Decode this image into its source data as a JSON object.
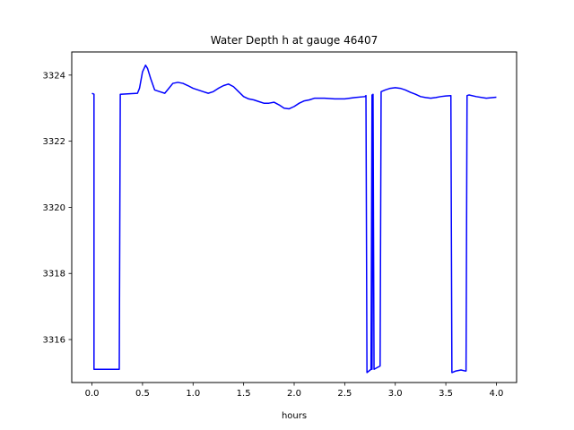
{
  "chart_data": {
    "type": "line",
    "title": "Water Depth h at gauge 46407",
    "xlabel": "hours",
    "ylabel": "",
    "xlim": [
      -0.2,
      4.2
    ],
    "ylim": [
      3314.7,
      3324.7
    ],
    "xticks": [
      0.0,
      0.5,
      1.0,
      1.5,
      2.0,
      2.5,
      3.0,
      3.5,
      4.0
    ],
    "xtick_labels": [
      "0.0",
      "0.5",
      "1.0",
      "1.5",
      "2.0",
      "2.5",
      "3.0",
      "3.5",
      "4.0"
    ],
    "yticks": [
      3316,
      3318,
      3320,
      3322,
      3324
    ],
    "ytick_labels": [
      "3316",
      "3318",
      "3320",
      "3322",
      "3324"
    ],
    "grid": false,
    "series": [
      {
        "color": "#0000ff",
        "x": [
          0.0,
          0.02,
          0.02,
          0.27,
          0.28,
          0.45,
          0.47,
          0.5,
          0.53,
          0.55,
          0.58,
          0.62,
          0.67,
          0.72,
          0.76,
          0.8,
          0.85,
          0.9,
          0.95,
          1.0,
          1.05,
          1.1,
          1.15,
          1.2,
          1.25,
          1.3,
          1.35,
          1.4,
          1.45,
          1.5,
          1.55,
          1.6,
          1.65,
          1.7,
          1.75,
          1.8,
          1.85,
          1.9,
          1.95,
          2.0,
          2.05,
          2.1,
          2.15,
          2.2,
          2.3,
          2.4,
          2.5,
          2.6,
          2.7,
          2.71,
          2.72,
          2.76,
          2.77,
          2.77,
          2.78,
          2.79,
          2.82,
          2.85,
          2.86,
          2.9,
          2.95,
          3.0,
          3.05,
          3.1,
          3.15,
          3.2,
          3.25,
          3.3,
          3.35,
          3.4,
          3.45,
          3.5,
          3.55,
          3.56,
          3.56,
          3.6,
          3.65,
          3.69,
          3.7,
          3.71,
          3.73,
          3.8,
          3.9,
          4.0
        ],
        "y": [
          3323.45,
          3323.42,
          3315.1,
          3315.1,
          3323.42,
          3323.45,
          3323.6,
          3324.1,
          3324.3,
          3324.2,
          3323.9,
          3323.55,
          3323.5,
          3323.45,
          3323.6,
          3323.75,
          3323.78,
          3323.75,
          3323.68,
          3323.6,
          3323.55,
          3323.5,
          3323.45,
          3323.5,
          3323.6,
          3323.68,
          3323.73,
          3323.65,
          3323.5,
          3323.35,
          3323.28,
          3323.25,
          3323.2,
          3323.15,
          3323.15,
          3323.18,
          3323.1,
          3323.0,
          3322.98,
          3323.05,
          3323.15,
          3323.22,
          3323.25,
          3323.3,
          3323.3,
          3323.28,
          3323.28,
          3323.32,
          3323.35,
          3323.38,
          3315.0,
          3315.1,
          3323.4,
          3315.1,
          3323.42,
          3315.1,
          3315.15,
          3315.2,
          3323.5,
          3323.55,
          3323.6,
          3323.62,
          3323.6,
          3323.55,
          3323.48,
          3323.42,
          3323.35,
          3323.32,
          3323.3,
          3323.32,
          3323.35,
          3323.37,
          3323.38,
          3315.0,
          3315.0,
          3315.05,
          3315.08,
          3315.05,
          3315.05,
          3323.38,
          3323.4,
          3323.35,
          3323.3,
          3323.33
        ]
      }
    ]
  }
}
